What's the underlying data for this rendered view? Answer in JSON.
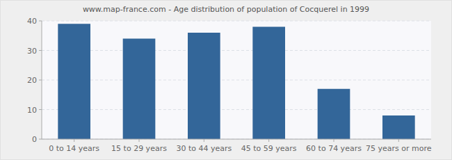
{
  "chart_data": {
    "type": "bar",
    "title": "www.map-france.com - Age distribution of population of Cocquerel in 1999",
    "categories": [
      "0 to 14 years",
      "15 to 29 years",
      "30 to 44 years",
      "45 to 59 years",
      "60 to 74 years",
      "75 years or more"
    ],
    "values": [
      39,
      34,
      36,
      38,
      17,
      8
    ],
    "color": "#336699",
    "ylim": [
      0,
      40
    ],
    "yticks": [
      0,
      10,
      20,
      30,
      40
    ],
    "grid": true
  }
}
